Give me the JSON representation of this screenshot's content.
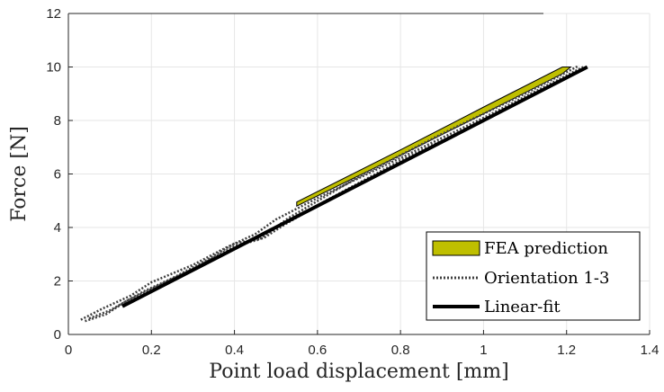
{
  "chart_data": {
    "type": "line",
    "title": "",
    "xlabel": "Point load displacement [mm]",
    "ylabel": "Force [N]",
    "xlim": [
      0,
      1.4
    ],
    "ylim": [
      0,
      12
    ],
    "xticks": [
      0,
      0.2,
      0.4,
      0.6,
      0.8,
      1,
      1.2,
      1.4
    ],
    "yticks": [
      0,
      2,
      4,
      6,
      8,
      10,
      12
    ],
    "xtick_labels": [
      "0",
      "0.2",
      "0.4",
      "0.6",
      "0.8",
      "1",
      "1.2",
      "1.4"
    ],
    "ytick_labels": [
      "0",
      "2",
      "4",
      "6",
      "8",
      "10",
      "12"
    ],
    "grid": true,
    "legend_position": "bottom-right",
    "series": [
      {
        "name": "FEA prediction",
        "style": "band",
        "color": "#bfbf00",
        "upper": {
          "x": [
            0.55,
            0.8,
            1.0,
            1.19,
            1.21
          ],
          "y": [
            4.95,
            6.9,
            8.5,
            10.0,
            10.0
          ]
        },
        "lower": {
          "x": [
            0.55,
            0.8,
            1.0,
            1.19,
            1.21
          ],
          "y": [
            4.8,
            6.7,
            8.25,
            9.75,
            10.0
          ]
        }
      },
      {
        "name": "Orientation 1-3",
        "style": "dotted",
        "color": "#404040",
        "lines": [
          {
            "x": [
              0.03,
              0.08,
              0.15,
              0.2,
              0.3,
              0.38,
              0.45,
              0.5,
              0.6,
              0.8,
              1.0,
              1.24
            ],
            "y": [
              0.55,
              0.95,
              1.45,
              1.95,
              2.6,
              3.25,
              3.75,
              4.3,
              5.1,
              6.6,
              8.1,
              10.0
            ]
          },
          {
            "x": [
              0.05,
              0.1,
              0.18,
              0.25,
              0.33,
              0.4,
              0.47,
              0.52,
              0.62,
              0.8,
              1.0,
              1.25
            ],
            "y": [
              0.6,
              0.9,
              1.6,
              2.1,
              2.75,
              3.4,
              3.6,
              4.1,
              5.0,
              6.5,
              8.0,
              10.0
            ]
          },
          {
            "x": [
              0.04,
              0.09,
              0.14,
              0.22,
              0.3,
              0.4,
              0.46,
              0.53,
              0.7,
              0.9,
              1.1,
              1.23
            ],
            "y": [
              0.5,
              0.75,
              1.25,
              1.85,
              2.45,
              3.3,
              3.55,
              4.35,
              5.9,
              7.5,
              9.0,
              10.05
            ]
          }
        ]
      },
      {
        "name": "Linear-fit",
        "style": "solid",
        "color": "#000000",
        "x": [
          0.13,
          1.25
        ],
        "y": [
          1.05,
          10.0
        ]
      }
    ]
  }
}
